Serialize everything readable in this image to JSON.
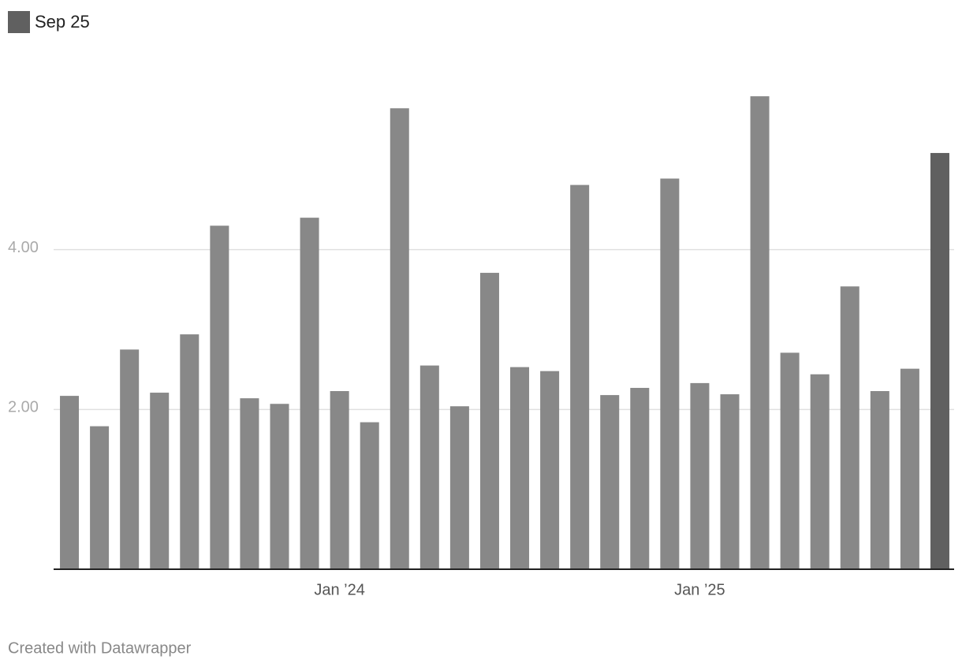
{
  "chart_data": {
    "type": "bar",
    "legend": {
      "label": "Sep 25",
      "color": "#606060"
    },
    "categories": [
      null,
      null,
      null,
      null,
      null,
      null,
      null,
      null,
      null,
      "Jan ’24",
      null,
      null,
      null,
      null,
      null,
      null,
      null,
      null,
      null,
      null,
      null,
      "Jan ’25",
      null,
      null,
      null,
      null,
      null,
      null,
      null,
      null
    ],
    "values": [
      2.17,
      1.79,
      2.75,
      2.21,
      2.94,
      4.3,
      2.14,
      2.07,
      4.4,
      2.23,
      1.84,
      5.77,
      2.55,
      2.04,
      3.71,
      2.53,
      2.48,
      4.81,
      2.18,
      2.27,
      4.89,
      2.33,
      2.19,
      5.92,
      2.71,
      2.44,
      3.54,
      2.23,
      2.51,
      5.21
    ],
    "colors": [
      "#888888",
      "#888888",
      "#888888",
      "#888888",
      "#888888",
      "#888888",
      "#888888",
      "#888888",
      "#888888",
      "#888888",
      "#888888",
      "#888888",
      "#888888",
      "#888888",
      "#888888",
      "#888888",
      "#888888",
      "#888888",
      "#888888",
      "#888888",
      "#888888",
      "#888888",
      "#888888",
      "#888888",
      "#888888",
      "#888888",
      "#888888",
      "#888888",
      "#888888",
      "#606060"
    ],
    "ylim": [
      0,
      6
    ],
    "yticks": [
      {
        "value": 2,
        "label": "2.00"
      },
      {
        "value": 4,
        "label": "4.00"
      }
    ],
    "grid": true
  },
  "footer": "Created with Datawrapper"
}
